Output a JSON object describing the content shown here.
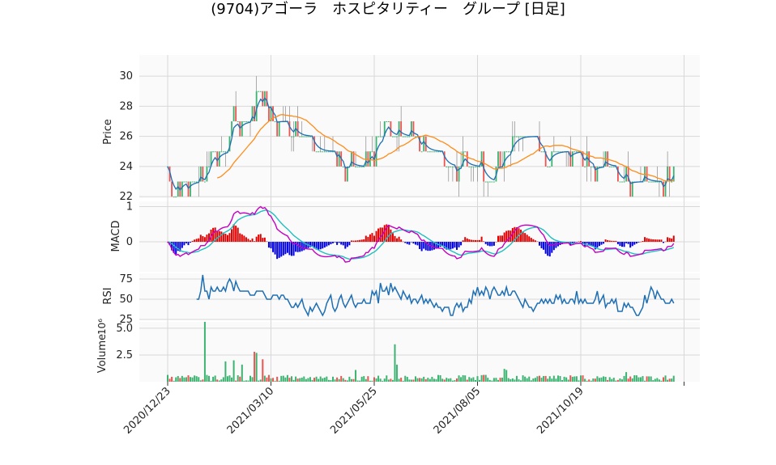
{
  "title": "(9704)アゴーラ　ホスピタリティー　グループ  [日足]",
  "chart_data": [
    {
      "type": "candlestick",
      "panel": "price",
      "ylabel": "Price",
      "yticks": [
        22,
        24,
        26,
        28,
        30
      ],
      "ylim": [
        21.9,
        31.4
      ],
      "x_tick_labels": [
        "2020/12/23",
        "2021/03/10",
        "2021/05/25",
        "2021/08/05",
        "2021/10/19"
      ],
      "x_tick_index": [
        0,
        50,
        100,
        150,
        200,
        250
      ],
      "n_days": 246,
      "up_color": "#3cb371",
      "down_color": "#ef5350",
      "moving_average": {
        "line_color": "#ff8c1a",
        "close_line_color": "#1f6fb4"
      },
      "close_anchors": [
        [
          0,
          24
        ],
        [
          3,
          22
        ],
        [
          12,
          23
        ],
        [
          18,
          23
        ],
        [
          22,
          25
        ],
        [
          28,
          25
        ],
        [
          32,
          27
        ],
        [
          36,
          27
        ],
        [
          40,
          27
        ],
        [
          44,
          29
        ],
        [
          48,
          28
        ],
        [
          52,
          27
        ],
        [
          56,
          27
        ],
        [
          60,
          26
        ],
        [
          64,
          26
        ],
        [
          68,
          26
        ],
        [
          72,
          25
        ],
        [
          76,
          25
        ],
        [
          80,
          25
        ],
        [
          84,
          24
        ],
        [
          88,
          24
        ],
        [
          92,
          24
        ],
        [
          96,
          24
        ],
        [
          100,
          25
        ],
        [
          104,
          27
        ],
        [
          108,
          26
        ],
        [
          112,
          26
        ],
        [
          116,
          26
        ],
        [
          120,
          26
        ],
        [
          124,
          25
        ],
        [
          128,
          25
        ],
        [
          132,
          25
        ],
        [
          136,
          24
        ],
        [
          140,
          24
        ],
        [
          144,
          24
        ],
        [
          148,
          24
        ],
        [
          152,
          24
        ],
        [
          156,
          23
        ],
        [
          160,
          24
        ],
        [
          164,
          25
        ],
        [
          168,
          26
        ],
        [
          172,
          26
        ],
        [
          176,
          26
        ],
        [
          180,
          25
        ],
        [
          184,
          24
        ],
        [
          188,
          25
        ],
        [
          192,
          25
        ],
        [
          196,
          25
        ],
        [
          200,
          25
        ],
        [
          204,
          24
        ],
        [
          208,
          24
        ],
        [
          212,
          24
        ],
        [
          216,
          24
        ],
        [
          220,
          23
        ],
        [
          224,
          23
        ],
        [
          228,
          23
        ],
        [
          232,
          23
        ],
        [
          236,
          23
        ],
        [
          240,
          23
        ],
        [
          245,
          23.5
        ]
      ]
    },
    {
      "type": "line",
      "panel": "macd",
      "ylabel": "MACD",
      "yticks": [
        0,
        1
      ],
      "ylim": [
        -0.85,
        1.15
      ],
      "series": [
        {
          "role": "macd",
          "color": "#c400c4"
        },
        {
          "role": "signal",
          "color": "#1fbfbf"
        },
        {
          "role": "histogram",
          "up_color": "#e00000",
          "down_color": "#0000e0"
        }
      ]
    },
    {
      "type": "line",
      "panel": "rsi",
      "ylabel": "RSI",
      "yticks": [
        25,
        50,
        75
      ],
      "ylim": [
        24,
        82
      ],
      "color": "#1f6fb4",
      "values": [
        null,
        null,
        null,
        null,
        null,
        null,
        null,
        null,
        null,
        null,
        null,
        null,
        null,
        null,
        50,
        50,
        60,
        80,
        60,
        60,
        50,
        65,
        60,
        60,
        65,
        60,
        60,
        65,
        60,
        70,
        75,
        70,
        60,
        72,
        65,
        60,
        60,
        60,
        60,
        60,
        55,
        55,
        55,
        60,
        60,
        60,
        60,
        55,
        50,
        50,
        50,
        55,
        55,
        55,
        50,
        55,
        55,
        50,
        50,
        45,
        40,
        40,
        45,
        40,
        45,
        50,
        40,
        35,
        30,
        40,
        35,
        40,
        45,
        40,
        35,
        30,
        35,
        45,
        50,
        55,
        40,
        35,
        40,
        50,
        55,
        45,
        40,
        45,
        50,
        55,
        45,
        40,
        45,
        45,
        45,
        50,
        45,
        45,
        45,
        60,
        55,
        60,
        45,
        70,
        60,
        60,
        65,
        55,
        70,
        60,
        65,
        60,
        55,
        50,
        60,
        55,
        50,
        55,
        45,
        50,
        50,
        45,
        50,
        55,
        45,
        50,
        45,
        50,
        45,
        40,
        45,
        40,
        40,
        35,
        40,
        40,
        40,
        30,
        30,
        40,
        45,
        40,
        45,
        35,
        40,
        40,
        50,
        45,
        60,
        55,
        65,
        55,
        60,
        55,
        65,
        60,
        50,
        60,
        65,
        60,
        55,
        55,
        60,
        55,
        65,
        55,
        55,
        60,
        60,
        55,
        50,
        45,
        40,
        50,
        45,
        40,
        40,
        35,
        40,
        45,
        45,
        50,
        45,
        50,
        45,
        50,
        45,
        45,
        55,
        50,
        55,
        45,
        50,
        45,
        45,
        50,
        50,
        45,
        60,
        45,
        50,
        45,
        50,
        45,
        45,
        45,
        45,
        50,
        60,
        45,
        50,
        55,
        40,
        45,
        45,
        50,
        45,
        50,
        35,
        35,
        35,
        45,
        40,
        45,
        40,
        40,
        35,
        30,
        30,
        35,
        40,
        55,
        45,
        55,
        65,
        60,
        50,
        60,
        55,
        50,
        50,
        45,
        45,
        45,
        50,
        45
      ]
    },
    {
      "type": "bar",
      "panel": "volume",
      "ylabel": "Volume",
      "ylabel_exponent": "10⁶",
      "yticks": [
        2.5,
        5.0
      ],
      "ylim": [
        0,
        5.6
      ],
      "spike_values": {
        "18": 5.7,
        "28": 1.9,
        "32": 2.0,
        "36": 1.6,
        "42": 2.8,
        "43": 2.7,
        "46": 2.1,
        "91": 1.1,
        "110": 3.5,
        "111": 1.6,
        "163": 1.2,
        "164": 1.1,
        "222": 0.9
      },
      "baseline_value": 0.4
    }
  ]
}
